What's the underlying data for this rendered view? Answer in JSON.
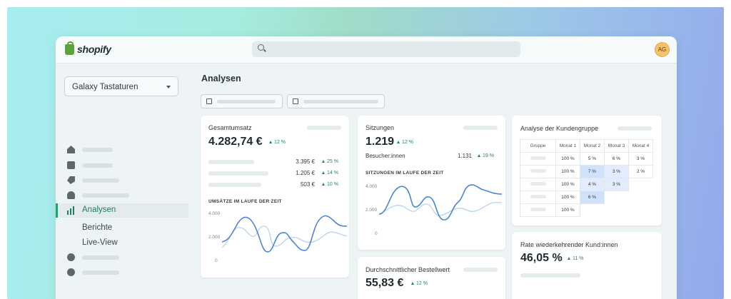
{
  "app": {
    "brand": "shopify",
    "avatar_initials": "AG"
  },
  "store": {
    "name": "Galaxy Tastaturen"
  },
  "nav": {
    "active": "Analysen",
    "sub_items": [
      "Berichte",
      "Live-View"
    ]
  },
  "page": {
    "title": "Analysen"
  },
  "sales": {
    "title": "Gesamtumsatz",
    "value": "4.282,74 €",
    "delta": "12 %",
    "rows": [
      {
        "value": "3.395 €",
        "delta": "25 %"
      },
      {
        "value": "1.205 €",
        "delta": "14 %"
      },
      {
        "value": "503 €",
        "delta": "10 %"
      }
    ],
    "chart_title": "UMSÄTZE IM LAUFE DER ZEIT",
    "axis": [
      "4.000",
      "2.000",
      "0"
    ]
  },
  "sessions": {
    "title": "Sitzungen",
    "value": "1.219",
    "delta": "12 %",
    "visitors_label": "Besucher:innen",
    "visitors_value": "1.131",
    "visitors_delta": "19 %",
    "chart_title": "SITZUNGEN IM LAUFE DER ZEIT",
    "axis": [
      "4.000",
      "2.000",
      "0"
    ]
  },
  "aov": {
    "title": "Durchschnittlicher Bestellwert",
    "value": "55,83 €",
    "delta": "12 %"
  },
  "cohort": {
    "title": "Analyse der Kundengruppe",
    "headers": [
      "Gruppe",
      "Monat 1",
      "Monat 2",
      "Monat 3",
      "Monat 4"
    ],
    "rows": [
      [
        "100 %",
        "5 %",
        "6 %",
        "3 %"
      ],
      [
        "100 %",
        "7 %",
        "3 %",
        "2 %"
      ],
      [
        "100 %",
        "4 %",
        "3 %",
        ""
      ],
      [
        "100 %",
        "6 %",
        "",
        ""
      ],
      [
        "100 %",
        "",
        "",
        ""
      ]
    ]
  },
  "returning": {
    "title": "Rate wiederkehrender Kund:innen",
    "value": "46,05 %",
    "delta": "11 %"
  },
  "colors": {
    "accent": "#2b9c6f",
    "chart_line": "#4a86d8",
    "chart_compare": "#b9d3ee"
  }
}
